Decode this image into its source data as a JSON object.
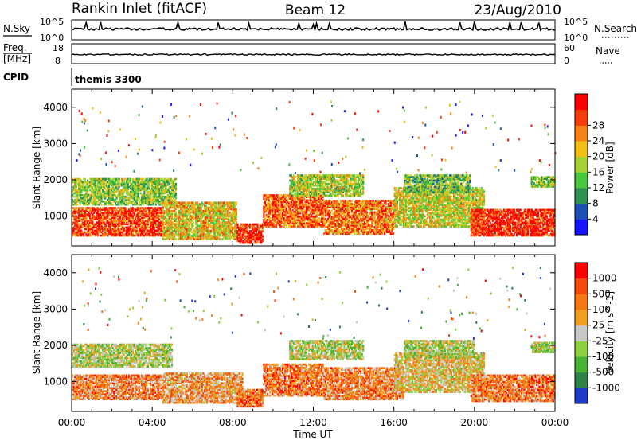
{
  "header": {
    "station": "Rankin Inlet (fitACF)",
    "beam": "Beam 12",
    "date": "23/Aug/2010"
  },
  "top_panels": {
    "nsky_label": "N.Sky",
    "nsky_ticks": [
      "10^5",
      "10^0"
    ],
    "nsearch_label": "N.Search",
    "freq_label": "Freq.",
    "freq_unit": "[MHz]",
    "freq_ticks": [
      "18",
      "8"
    ],
    "nave_label": "Nave",
    "nave_ticks": [
      "60",
      "0"
    ],
    "cpid_label": "CPID",
    "cpid_value": "themis 3300"
  },
  "x_axis": {
    "title": "Time UT",
    "ticks": [
      "00:00",
      "04:00",
      "08:00",
      "12:00",
      "16:00",
      "20:00",
      "00:00"
    ]
  },
  "chart_data": [
    {
      "type": "heatmap",
      "name": "power",
      "xlabel": "Time UT",
      "ylabel": "Slant Range [km]",
      "xlim": [
        0,
        24
      ],
      "ylim": [
        180,
        4500
      ],
      "y_ticks": [
        "1000",
        "2000",
        "3000",
        "4000"
      ],
      "colorbar": {
        "label": "Power [dB]",
        "ticks": [
          "4",
          "8",
          "12",
          "16",
          "20",
          "24",
          "28"
        ],
        "colors": [
          "#1414ff",
          "#1c50b4",
          "#2d9150",
          "#46c83c",
          "#a5d232",
          "#f0be14",
          "#f58214",
          "#f53c0a",
          "#ff0000"
        ]
      },
      "bands": [
        {
          "t": [
            0,
            4.5
          ],
          "r": [
            450,
            1250
          ],
          "level": 0.85
        },
        {
          "t": [
            0,
            5.2
          ],
          "r": [
            1300,
            2050
          ],
          "level": 0.45
        },
        {
          "t": [
            4.5,
            8.2
          ],
          "r": [
            350,
            1400
          ],
          "level": 0.6
        },
        {
          "t": [
            8.2,
            9.5
          ],
          "r": [
            250,
            800
          ],
          "level": 0.88
        },
        {
          "t": [
            9.5,
            12.5
          ],
          "r": [
            700,
            1600
          ],
          "level": 0.78
        },
        {
          "t": [
            10.8,
            14.5
          ],
          "r": [
            1550,
            2150
          ],
          "level": 0.5
        },
        {
          "t": [
            12.5,
            16.0
          ],
          "r": [
            500,
            1450
          ],
          "level": 0.75
        },
        {
          "t": [
            16.0,
            20.5
          ],
          "r": [
            700,
            1800
          ],
          "level": 0.55
        },
        {
          "t": [
            16.5,
            19.8
          ],
          "r": [
            1650,
            2150
          ],
          "level": 0.4
        },
        {
          "t": [
            19.8,
            24
          ],
          "r": [
            450,
            1200
          ],
          "level": 0.9
        },
        {
          "t": [
            22.8,
            24
          ],
          "r": [
            1800,
            2100
          ],
          "level": 0.45
        }
      ]
    },
    {
      "type": "heatmap",
      "name": "velocity",
      "xlabel": "Time UT",
      "ylabel": "Slant Range [km]",
      "xlim": [
        0,
        24
      ],
      "ylim": [
        180,
        4500
      ],
      "y_ticks": [
        "1000",
        "2000",
        "3000",
        "4000"
      ],
      "colorbar": {
        "label": "Velocity [m s^-1]",
        "ticks": [
          "1000",
          "500",
          "100",
          "25",
          "-25",
          "-100",
          "-500",
          "-1000"
        ],
        "colors": [
          "#1e3cc8",
          "#2d8246",
          "#46b432",
          "#8cd23c",
          "#c8c8c8",
          "#f0a01e",
          "#f57814",
          "#f54b0a",
          "#ff0000"
        ]
      },
      "bands": [
        {
          "t": [
            0,
            5.0
          ],
          "r": [
            1400,
            2050
          ],
          "level": 0.45
        },
        {
          "t": [
            0,
            4.5
          ],
          "r": [
            500,
            1200
          ],
          "level": 0.7
        },
        {
          "t": [
            4.5,
            8.5
          ],
          "r": [
            400,
            1250
          ],
          "level": 0.65
        },
        {
          "t": [
            8.2,
            9.5
          ],
          "r": [
            300,
            800
          ],
          "level": 0.75
        },
        {
          "t": [
            9.5,
            12.5
          ],
          "r": [
            600,
            1500
          ],
          "level": 0.72
        },
        {
          "t": [
            10.8,
            14.5
          ],
          "r": [
            1600,
            2150
          ],
          "level": 0.45
        },
        {
          "t": [
            12.5,
            16.5
          ],
          "r": [
            500,
            1400
          ],
          "level": 0.7
        },
        {
          "t": [
            16.0,
            20.5
          ],
          "r": [
            700,
            1800
          ],
          "level": 0.55
        },
        {
          "t": [
            16.5,
            20.0
          ],
          "r": [
            1650,
            2150
          ],
          "level": 0.45
        },
        {
          "t": [
            19.8,
            24
          ],
          "r": [
            450,
            1200
          ],
          "level": 0.72
        },
        {
          "t": [
            22.8,
            24
          ],
          "r": [
            1800,
            2100
          ],
          "level": 0.45
        }
      ]
    }
  ]
}
